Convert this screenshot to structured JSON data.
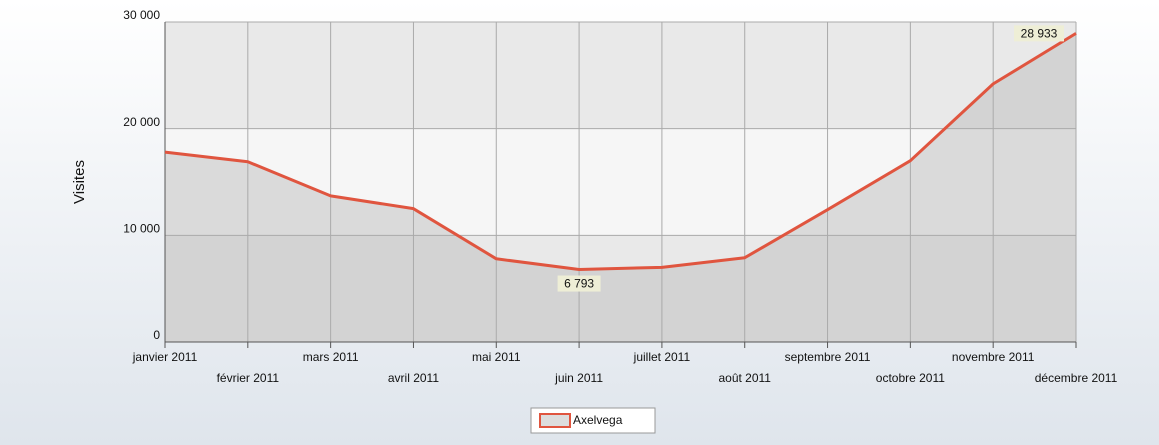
{
  "chart_data": {
    "type": "area",
    "y_label": "Visites",
    "categories": [
      "janvier 2011",
      "février 2011",
      "mars 2011",
      "avril 2011",
      "mai 2011",
      "juin 2011",
      "juillet 2011",
      "août 2011",
      "septembre 2011",
      "octobre 2011",
      "novembre 2011",
      "décembre 2011"
    ],
    "series": [
      {
        "name": "Axelvega",
        "color": "#e0553f",
        "values": [
          17800,
          16900,
          13700,
          12500,
          7800,
          6793,
          7000,
          7900,
          12400,
          17000,
          24200,
          28933
        ],
        "value_labels": [
          null,
          null,
          null,
          null,
          null,
          "6 793",
          null,
          null,
          null,
          null,
          null,
          "28 933"
        ]
      }
    ],
    "ylim": [
      0,
      30000
    ],
    "yticks": [
      0,
      {
        "value": 10000,
        "label": "10 000"
      },
      {
        "value": 20000,
        "label": "20 000"
      },
      {
        "value": 30000,
        "label": "30 000"
      }
    ],
    "grid": true,
    "legend": "bottom"
  }
}
